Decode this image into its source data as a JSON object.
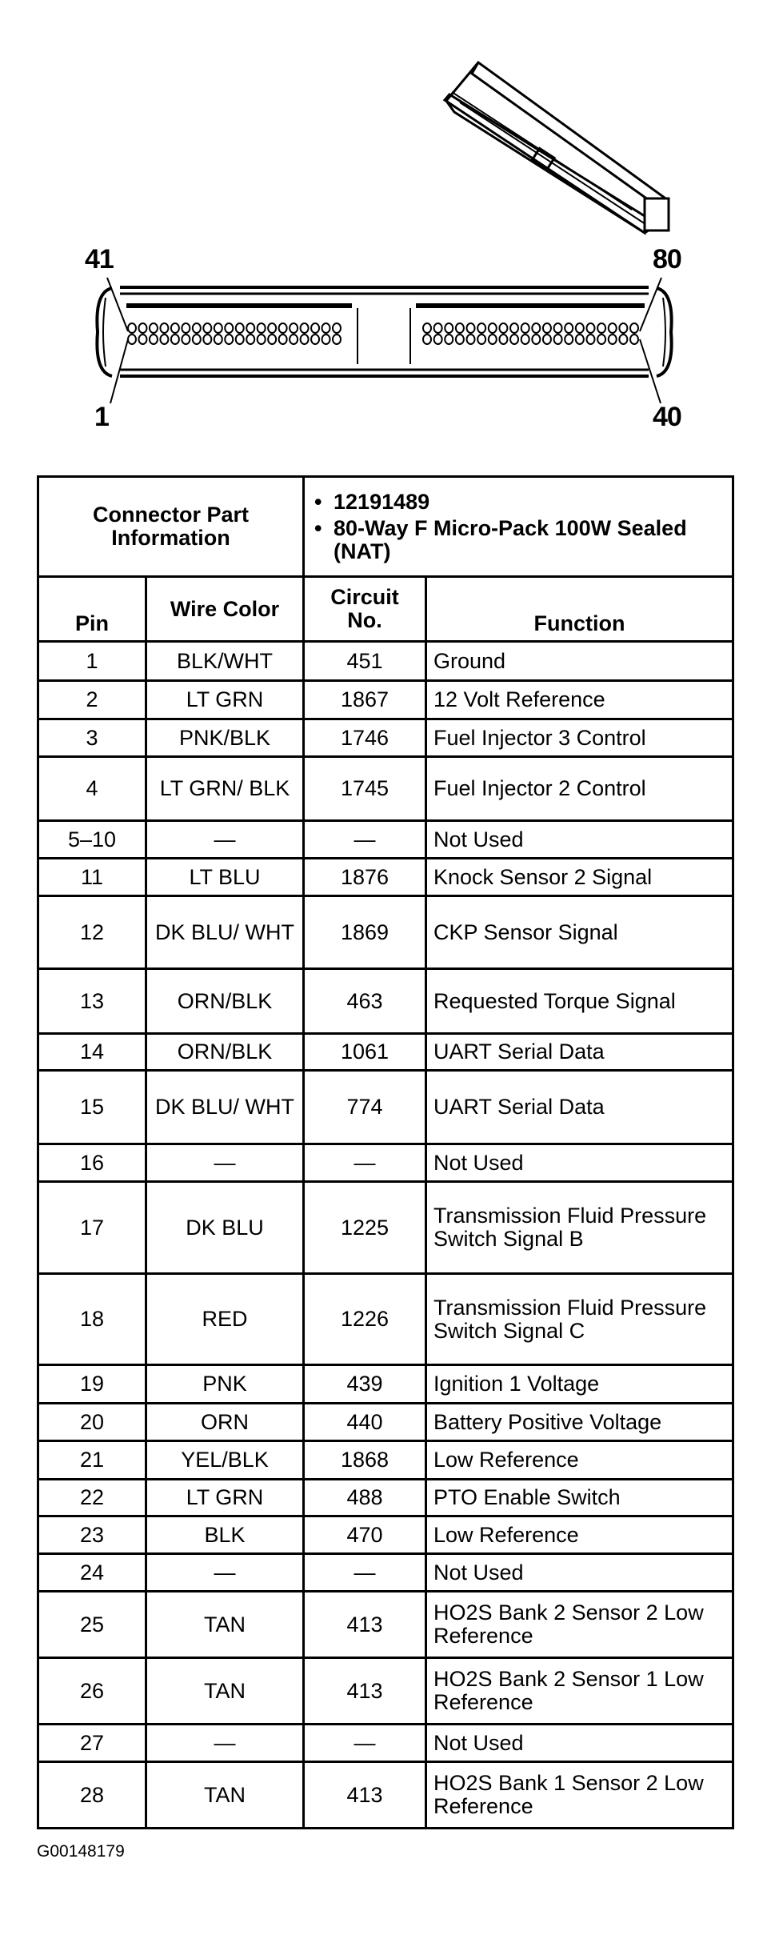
{
  "diagram": {
    "pin_labels": {
      "top_left": "41",
      "top_right": "80",
      "bottom_left": "1",
      "bottom_right": "40"
    }
  },
  "connector_info": {
    "label": "Connector Part Information",
    "items": [
      "12191489",
      "80-Way F Micro-Pack 100W Sealed (NAT)"
    ]
  },
  "columns": {
    "pin": "Pin",
    "wire_color": "Wire Color",
    "circuit": "Circuit No.",
    "function": "Function"
  },
  "rows": [
    {
      "pin": "1",
      "color": "BLK/WHT",
      "circuit": "451",
      "function": "Ground"
    },
    {
      "pin": "2",
      "color": "LT GRN",
      "circuit": "1867",
      "function": "12 Volt Reference"
    },
    {
      "pin": "3",
      "color": "PNK/BLK",
      "circuit": "1746",
      "function": "Fuel Injector 3 Control"
    },
    {
      "pin": "4",
      "color": "LT GRN/ BLK",
      "circuit": "1745",
      "function": "Fuel Injector 2 Control"
    },
    {
      "pin": "5–10",
      "color": "—",
      "circuit": "—",
      "function": "Not Used"
    },
    {
      "pin": "11",
      "color": "LT BLU",
      "circuit": "1876",
      "function": "Knock Sensor 2 Signal"
    },
    {
      "pin": "12",
      "color": "DK BLU/ WHT",
      "circuit": "1869",
      "function": "CKP Sensor Signal"
    },
    {
      "pin": "13",
      "color": "ORN/BLK",
      "circuit": "463",
      "function": "Requested Torque Signal"
    },
    {
      "pin": "14",
      "color": "ORN/BLK",
      "circuit": "1061",
      "function": "UART Serial Data"
    },
    {
      "pin": "15",
      "color": "DK BLU/ WHT",
      "circuit": "774",
      "function": "UART Serial Data"
    },
    {
      "pin": "16",
      "color": "—",
      "circuit": "—",
      "function": "Not Used"
    },
    {
      "pin": "17",
      "color": "DK BLU",
      "circuit": "1225",
      "function": "Transmission Fluid Pressure Switch Signal B"
    },
    {
      "pin": "18",
      "color": "RED",
      "circuit": "1226",
      "function": "Transmission Fluid Pressure Switch Signal C"
    },
    {
      "pin": "19",
      "color": "PNK",
      "circuit": "439",
      "function": "Ignition 1 Voltage"
    },
    {
      "pin": "20",
      "color": "ORN",
      "circuit": "440",
      "function": "Battery Positive Voltage"
    },
    {
      "pin": "21",
      "color": "YEL/BLK",
      "circuit": "1868",
      "function": "Low Reference"
    },
    {
      "pin": "22",
      "color": "LT GRN",
      "circuit": "488",
      "function": "PTO Enable Switch"
    },
    {
      "pin": "23",
      "color": "BLK",
      "circuit": "470",
      "function": "Low Reference"
    },
    {
      "pin": "24",
      "color": "—",
      "circuit": "—",
      "function": "Not Used"
    },
    {
      "pin": "25",
      "color": "TAN",
      "circuit": "413",
      "function": "HO2S Bank 2 Sensor 2 Low Reference"
    },
    {
      "pin": "26",
      "color": "TAN",
      "circuit": "413",
      "function": "HO2S Bank 2 Sensor 1 Low Reference"
    },
    {
      "pin": "27",
      "color": "—",
      "circuit": "—",
      "function": "Not Used"
    },
    {
      "pin": "28",
      "color": "TAN",
      "circuit": "413",
      "function": "HO2S Bank 1 Sensor 2 Low Reference"
    }
  ],
  "figure_id": "G00148179"
}
